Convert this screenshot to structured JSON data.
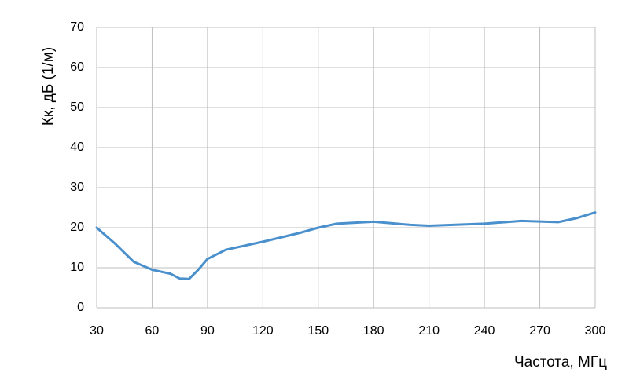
{
  "chart_data": {
    "type": "line",
    "x_label": "Частота, МГц",
    "y_label": "Кк, дБ (1/м)",
    "x": [
      30,
      40,
      50,
      60,
      70,
      75,
      80,
      85,
      90,
      100,
      120,
      140,
      150,
      160,
      180,
      200,
      210,
      240,
      260,
      280,
      290,
      300
    ],
    "series": [
      {
        "name": "Кк",
        "color": "#4a90cc",
        "values": [
          20,
          16,
          11.5,
          9.5,
          8.5,
          7.3,
          7.2,
          9.5,
          12.2,
          14.5,
          16.5,
          18.7,
          20,
          21,
          21.5,
          20.7,
          20.5,
          21,
          21.7,
          21.4,
          22.4,
          23.8
        ]
      }
    ],
    "xlim": [
      30,
      300
    ],
    "xticks": [
      30,
      60,
      90,
      120,
      150,
      180,
      210,
      240,
      270,
      300
    ],
    "ylim": [
      0,
      70
    ],
    "yticks": [
      0,
      10,
      20,
      30,
      40,
      50,
      60,
      70
    ],
    "grid": true
  }
}
